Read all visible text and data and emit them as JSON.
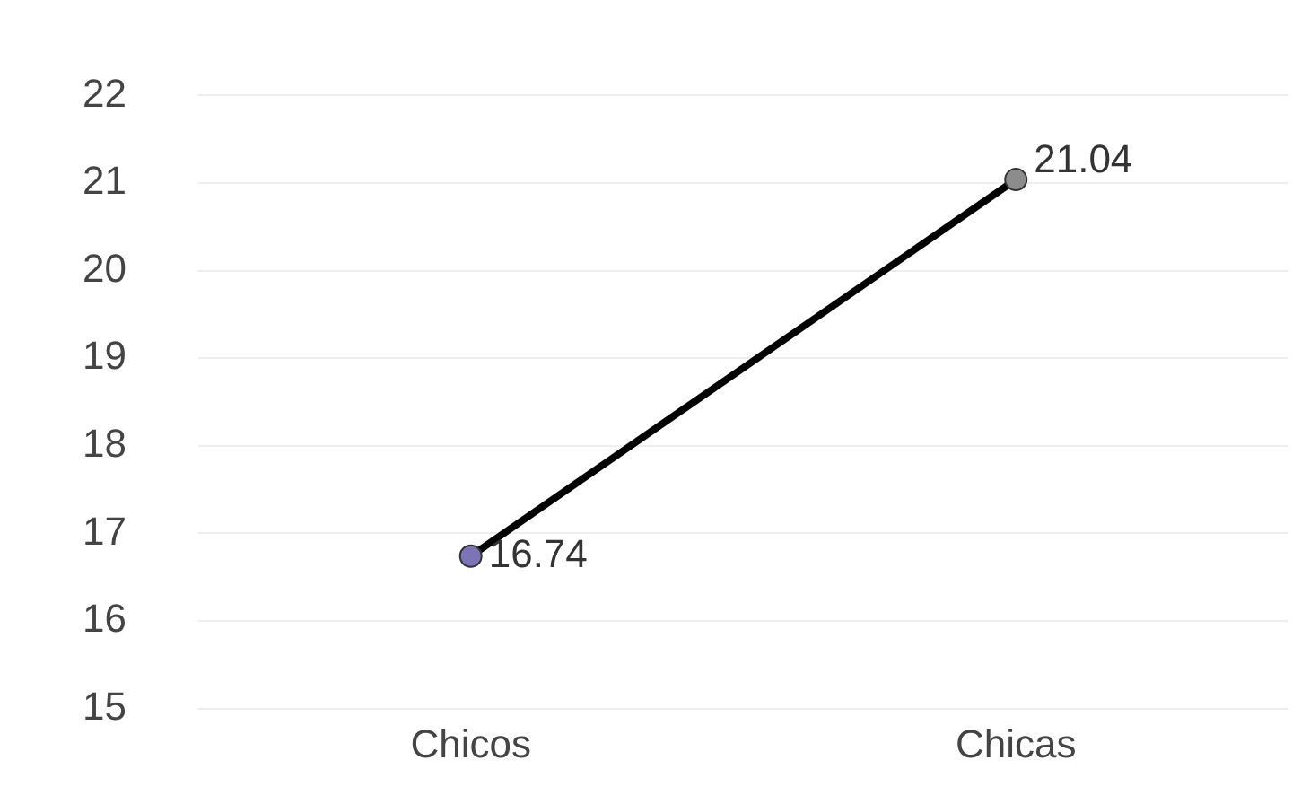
{
  "chart_data": {
    "type": "line",
    "categories": [
      "Chicos",
      "Chicas"
    ],
    "series": [
      {
        "color": "#000000",
        "colors": [
          "#7b74b6",
          "#8c8c8c"
        ],
        "values": [
          16.74,
          21.04
        ]
      }
    ],
    "ylim": [
      15,
      22
    ],
    "yticks": [
      15,
      16,
      17,
      18,
      19,
      20,
      21,
      22
    ],
    "grid": "y",
    "marker": "circle",
    "data_labels": true,
    "legend": false
  }
}
